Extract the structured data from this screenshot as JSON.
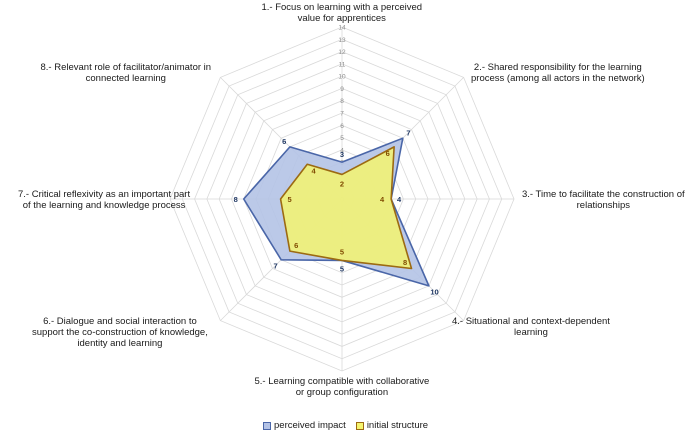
{
  "chart_data": {
    "type": "radar",
    "categories": [
      "1.- Focus on learning with a perceived value for apprentices",
      "2.- Shared responsibility for the learning process (among all actors in the network)",
      "3.- Time to facilitate the construction of relationships",
      "4.- Situational and context-dependent learning",
      "5.- Learning compatible with collaborative or group configuration",
      "6.- Dialogue and social interaction to support the co-construction of knowledge, identity and learning",
      "7.- Critical reflexivity as an important part of the learning and knowledge process",
      "8.- Relevant role of facilitator/animator in connected learning"
    ],
    "category_lines": [
      [
        "1.- Focus on learning with a perceived",
        "value for apprentices"
      ],
      [
        "2.- Shared responsibility for the learning",
        "process (among all actors in the network)"
      ],
      [
        "3.- Time to facilitate the construction of",
        "relationships"
      ],
      [
        "4.- Situational and context-dependent",
        "learning"
      ],
      [
        "5.- Learning compatible with collaborative",
        "or group configuration"
      ],
      [
        "6.- Dialogue and social interaction to",
        "support the co-construction of knowledge,",
        "identity and learning"
      ],
      [
        "7.- Critical reflexivity as an important part",
        "of the learning and knowledge process"
      ],
      [
        "8.- Relevant role of facilitator/animator in",
        "connected learning"
      ]
    ],
    "series": [
      {
        "name": "perceived impact",
        "values": [
          3,
          7,
          4,
          10,
          5,
          7,
          8,
          6
        ],
        "fill": "#b4c3e6",
        "stroke": "#4a66a8",
        "label_color": "#203864"
      },
      {
        "name": "initial structure",
        "values": [
          2,
          6,
          4,
          8,
          5,
          6,
          5,
          4
        ],
        "fill": "#f5f56e",
        "stroke": "#9c6a12",
        "label_color": "#7f4a00"
      }
    ],
    "rlim": [
      0,
      14
    ],
    "ticks": [
      "0",
      "1",
      "2",
      "3",
      "4",
      "5",
      "6",
      "7",
      "8",
      "9",
      "10",
      "11",
      "12",
      "13",
      "14"
    ],
    "grid": true,
    "legend_position": "bottom"
  }
}
